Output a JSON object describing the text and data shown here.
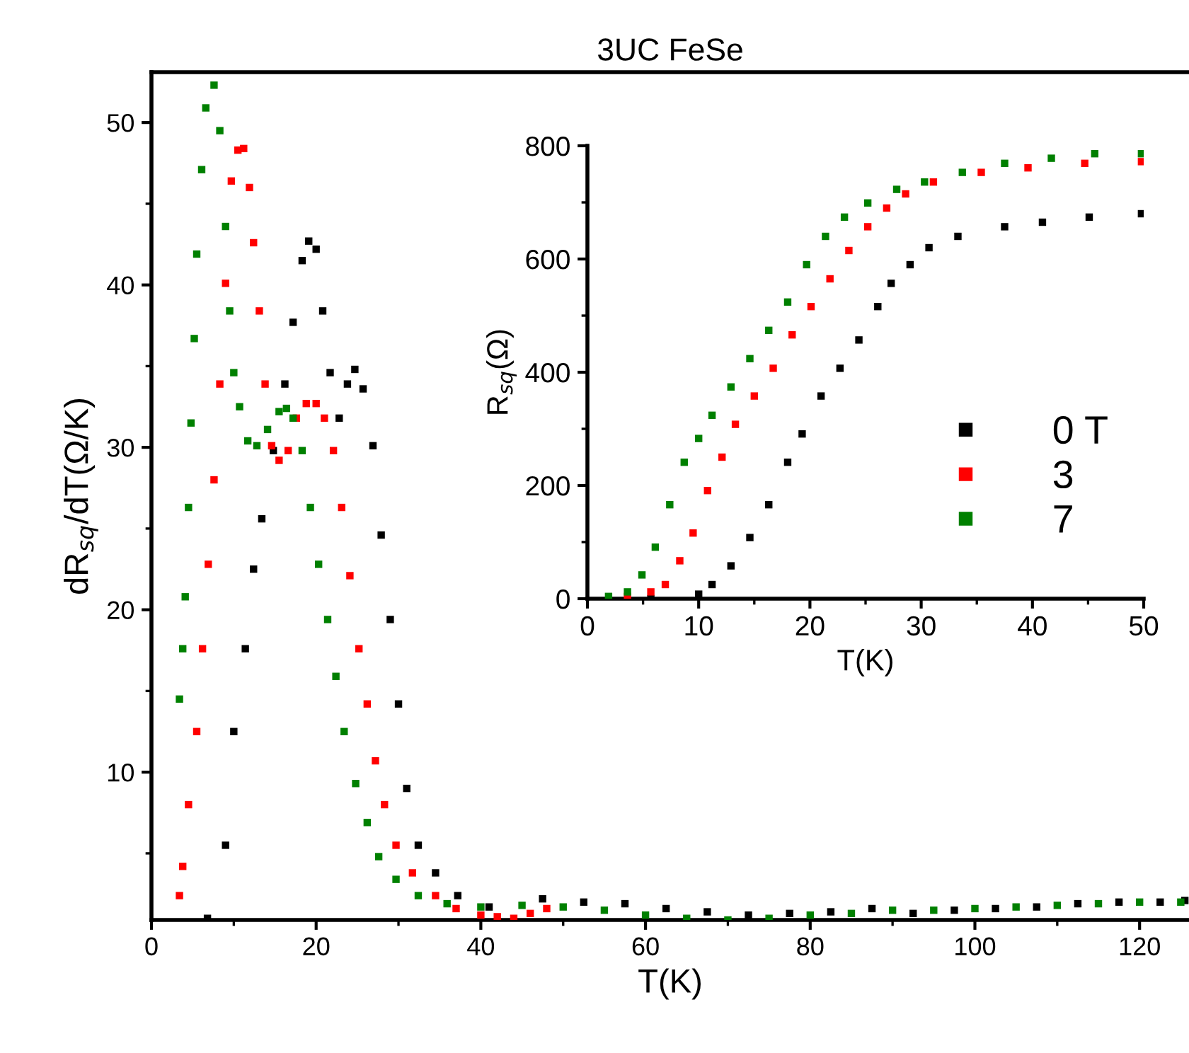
{
  "chart_data": [
    {
      "type": "scatter",
      "title": "3UC FeSe",
      "xlabel": "T(K)",
      "ylabel": "dR$_{sq}$/dT(Ω/K)",
      "xlim": [
        0,
        126
      ],
      "ylim": [
        0.9,
        53.1
      ],
      "xticks": [
        0,
        20,
        40,
        60,
        80,
        100,
        120
      ],
      "yticks": [
        10,
        20,
        30,
        40,
        50
      ],
      "marker": "square",
      "legend": false,
      "series": [
        {
          "color": "#000000",
          "x": [
            6.8,
            9.0,
            10.0,
            11.4,
            12.4,
            13.4,
            14.8,
            16.2,
            17.2,
            18.3,
            19.1,
            20.0,
            20.8,
            21.7,
            22.8,
            23.8,
            24.7,
            25.7,
            26.9,
            27.9,
            29.0,
            30.0,
            31.0,
            32.4,
            34.5,
            37.2,
            41,
            47.5,
            52.5,
            57.5,
            62.5,
            67.5,
            72.5,
            77.5,
            82.5,
            87.5,
            92.5,
            97.5,
            102.5,
            107.5,
            112.5,
            117.5,
            122.5,
            125.5
          ],
          "values": [
            1.0,
            5.5,
            12.5,
            17.6,
            22.5,
            25.6,
            29.8,
            33.9,
            37.7,
            41.5,
            42.7,
            42.2,
            38.4,
            34.6,
            31.8,
            33.9,
            34.8,
            33.6,
            30.1,
            24.6,
            19.4,
            14.2,
            9.0,
            5.5,
            3.8,
            2.4,
            1.7,
            2.2,
            2.0,
            1.9,
            1.6,
            1.4,
            1.2,
            1.3,
            1.4,
            1.6,
            1.3,
            1.5,
            1.6,
            1.7,
            1.9,
            2.0,
            2.0,
            2.1
          ]
        },
        {
          "color": "#ff0000",
          "x": [
            3.4,
            3.8,
            4.5,
            5.5,
            6.2,
            6.9,
            7.6,
            8.3,
            9.0,
            9.7,
            10.5,
            11.2,
            11.9,
            12.4,
            13.1,
            13.8,
            14.6,
            15.5,
            16.6,
            17.6,
            18.8,
            20.0,
            21.0,
            22.1,
            23.1,
            24.1,
            25.2,
            26.2,
            27.2,
            28.3,
            29.7,
            31.7,
            34.5,
            37,
            40,
            42,
            44,
            46,
            48
          ],
          "values": [
            2.4,
            4.2,
            8.0,
            12.5,
            17.6,
            22.8,
            28.0,
            33.9,
            40.1,
            46.4,
            48.3,
            48.4,
            46.0,
            42.6,
            38.4,
            33.9,
            30.1,
            29.2,
            29.8,
            31.8,
            32.7,
            32.7,
            31.8,
            29.8,
            26.3,
            22.1,
            17.6,
            14.2,
            10.7,
            8.0,
            5.5,
            3.8,
            2.4,
            1.6,
            1.2,
            1.1,
            1.0,
            1.3,
            1.6
          ]
        },
        {
          "color": "#008000",
          "x": [
            3.4,
            3.8,
            4.1,
            4.5,
            4.8,
            5.2,
            5.5,
            6.1,
            6.6,
            7.6,
            8.3,
            9.0,
            9.5,
            10.0,
            10.7,
            11.7,
            12.8,
            14.1,
            15.5,
            16.4,
            17.2,
            18.3,
            19.3,
            20.3,
            21.4,
            22.4,
            23.4,
            24.8,
            26.2,
            27.6,
            29.7,
            32.4,
            35.9,
            40,
            45,
            50,
            55,
            60,
            65,
            70,
            75,
            80,
            85,
            90,
            95,
            100,
            105,
            110,
            115,
            120,
            125
          ],
          "values": [
            14.5,
            17.6,
            20.8,
            26.3,
            31.5,
            36.7,
            41.9,
            47.1,
            50.9,
            52.3,
            49.5,
            43.6,
            38.4,
            34.6,
            32.5,
            30.4,
            30.1,
            31.1,
            32.2,
            32.4,
            31.8,
            29.8,
            26.3,
            22.8,
            19.4,
            15.9,
            12.5,
            9.3,
            6.9,
            4.8,
            3.4,
            2.4,
            1.9,
            1.7,
            1.8,
            1.7,
            1.5,
            1.2,
            1.0,
            0.9,
            1.0,
            1.2,
            1.3,
            1.5,
            1.5,
            1.6,
            1.7,
            1.8,
            1.9,
            2.0,
            2.0
          ]
        }
      ]
    },
    {
      "type": "scatter",
      "xlabel": "T(K)",
      "ylabel": "R$_{sq}$(Ω)",
      "xlim": [
        0,
        50
      ],
      "ylim": [
        0,
        800
      ],
      "xticks": [
        0,
        10,
        20,
        30,
        40,
        50
      ],
      "yticks": [
        0,
        200,
        400,
        600,
        800
      ],
      "marker": "square",
      "legend": "bottom right",
      "series": [
        {
          "name": "0 T",
          "color": "#000000",
          "x": [
            5.7,
            10.0,
            11.2,
            12.9,
            14.6,
            16.3,
            18.0,
            19.3,
            21.0,
            22.7,
            24.4,
            26.1,
            27.3,
            29.0,
            30.7,
            33.3,
            37.5,
            40.9,
            45.1,
            49.8
          ],
          "values": [
            0,
            8,
            25,
            58,
            108,
            166,
            241,
            291,
            358,
            407,
            457,
            516,
            557,
            590,
            620,
            640,
            657,
            665,
            674,
            680
          ]
        },
        {
          "name": "3",
          "color": "#ff0000",
          "x": [
            3.6,
            5.7,
            7.0,
            8.3,
            9.5,
            10.8,
            12.1,
            13.3,
            15.0,
            16.7,
            18.4,
            20.1,
            21.8,
            23.5,
            25.2,
            26.9,
            28.6,
            31.1,
            35.4,
            39.6,
            44.7,
            49.8
          ],
          "values": [
            4,
            12,
            25,
            67,
            116,
            191,
            250,
            308,
            358,
            407,
            466,
            516,
            565,
            615,
            657,
            690,
            715,
            736,
            753,
            761,
            769,
            772
          ]
        },
        {
          "name": "7",
          "color": "#008000",
          "x": [
            1.9,
            3.6,
            4.9,
            6.1,
            7.4,
            8.7,
            10.0,
            11.2,
            12.9,
            14.6,
            16.3,
            18.0,
            19.7,
            21.4,
            23.1,
            25.2,
            27.8,
            30.3,
            33.7,
            37.5,
            41.7,
            45.6,
            49.8
          ],
          "values": [
            4,
            12,
            42,
            91,
            166,
            241,
            283,
            324,
            374,
            424,
            474,
            524,
            590,
            640,
            674,
            699,
            723,
            736,
            753,
            769,
            778,
            786,
            786
          ]
        }
      ]
    }
  ]
}
